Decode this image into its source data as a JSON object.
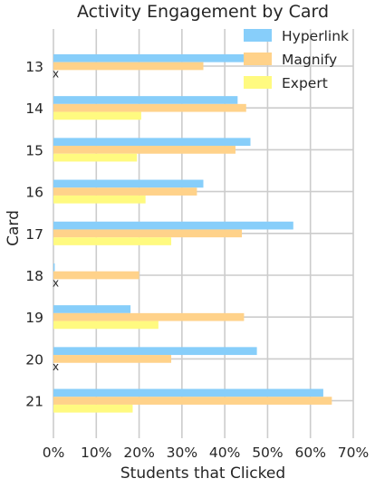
{
  "chart_data": {
    "type": "bar",
    "orientation": "horizontal",
    "title": "Activity Engagement by Card",
    "xlabel": "Students that Clicked",
    "ylabel": "Card",
    "categories": [
      "13",
      "14",
      "15",
      "16",
      "17",
      "18",
      "19",
      "20",
      "21"
    ],
    "xlim": [
      0,
      70
    ],
    "x_ticks": [
      "0%",
      "10%",
      "20%",
      "30%",
      "40%",
      "50%",
      "60%",
      "70%"
    ],
    "grid": true,
    "legend_position": "top-right",
    "series": [
      {
        "name": "Hyperlink",
        "color": "#87cefa",
        "values": [
          46.5,
          43,
          46,
          35,
          56,
          0.3,
          18,
          47.5,
          63
        ]
      },
      {
        "name": "Magnify",
        "color": "#ffd28a",
        "values": [
          35,
          45,
          42.5,
          33.5,
          44,
          20,
          44.5,
          27.5,
          65
        ]
      },
      {
        "name": "Expert",
        "color": "#fffa80",
        "values": [
          0,
          20.5,
          19.5,
          21.5,
          27.5,
          0,
          24.5,
          0,
          18.5
        ]
      }
    ],
    "missing_markers": [
      {
        "category": "13",
        "series": "Expert",
        "mark": "x"
      },
      {
        "category": "18",
        "series": "Expert",
        "mark": "x"
      },
      {
        "category": "20",
        "series": "Expert",
        "mark": "x"
      }
    ]
  }
}
